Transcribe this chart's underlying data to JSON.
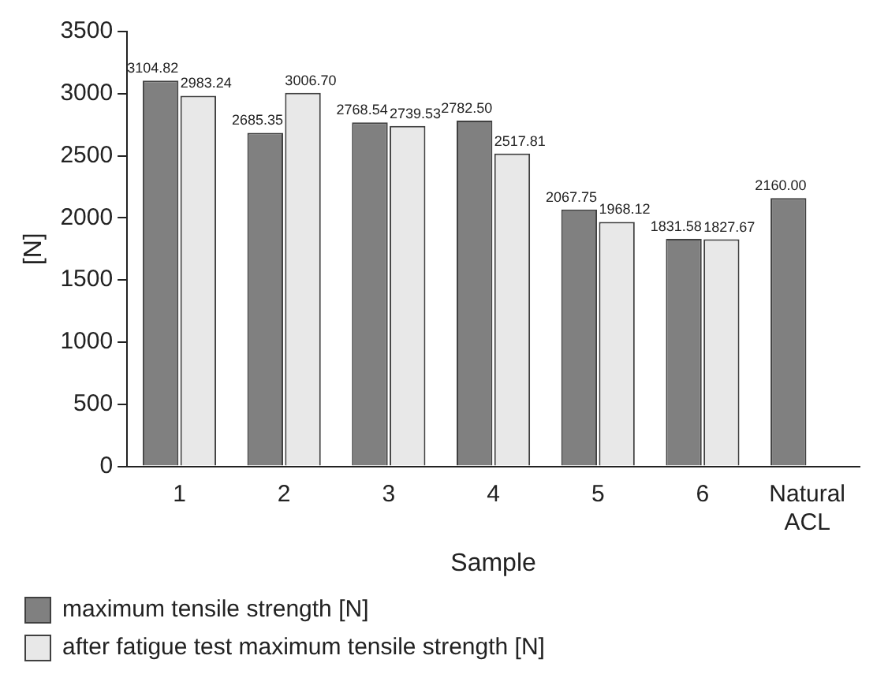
{
  "chart_data": {
    "type": "bar",
    "xlabel": "Sample",
    "ylabel": "[N]",
    "categories": [
      "1",
      "2",
      "3",
      "4",
      "5",
      "6",
      "Natural ACL"
    ],
    "series": [
      {
        "name": "maximum tensile strength [N]",
        "color": "#808080",
        "values": [
          3104.82,
          2685.35,
          2768.54,
          2782.5,
          2067.75,
          1831.58,
          2160
        ],
        "value_labels": [
          "3104.82",
          "2685.35",
          "2768.54",
          "2782.50",
          "2067.75",
          "1831.58",
          "2160.00"
        ]
      },
      {
        "name": "after fatigue test maximum tensile strength [N]",
        "color": "#e8e8e8",
        "values": [
          2983.24,
          3006.7,
          2739.53,
          2517.81,
          1968.12,
          1827.67,
          null
        ],
        "value_labels": [
          "2983.24",
          "3006.70",
          "2739.53",
          "2517.81",
          "1968.12",
          "1827.67",
          null
        ]
      }
    ],
    "ylim": [
      0,
      3500
    ],
    "yticks": [
      0,
      500,
      1000,
      1500,
      2000,
      2500,
      3000,
      3500
    ],
    "grid": false,
    "legend": "bottom"
  }
}
